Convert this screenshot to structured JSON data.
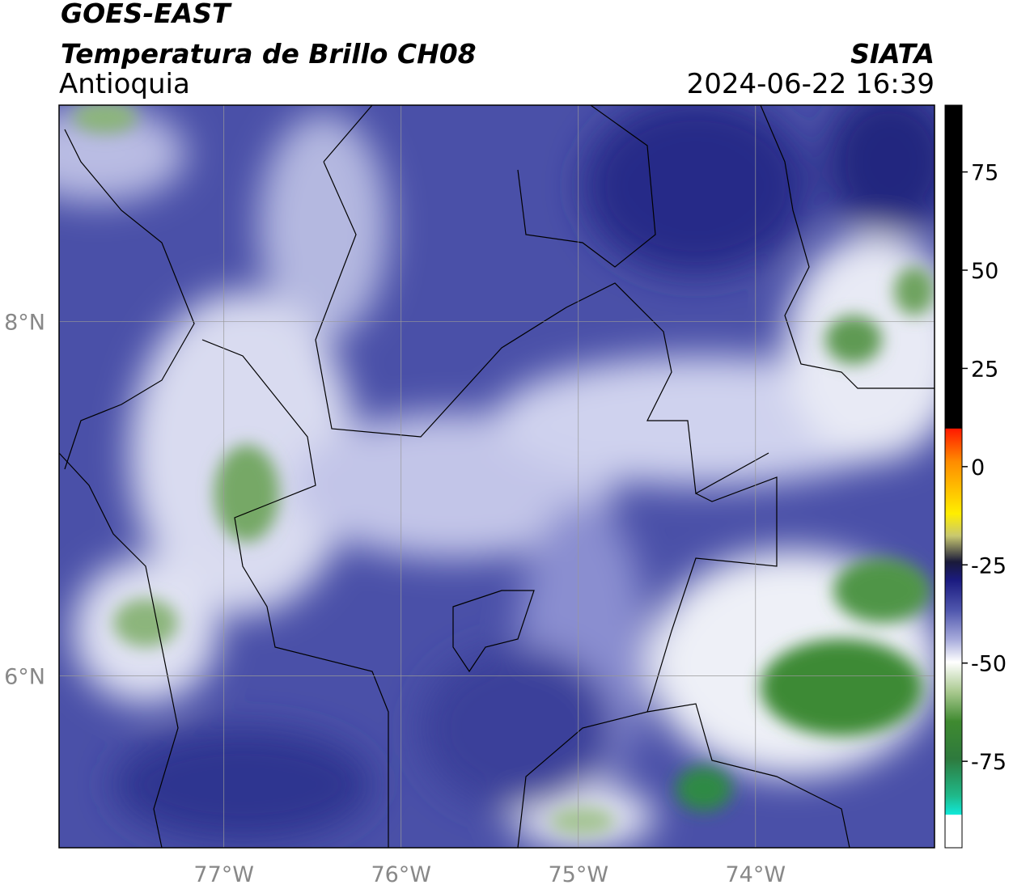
{
  "header": {
    "title": "GOES-EAST",
    "subtitle": "Temperatura de Brillo CH08",
    "region": "Antioquia",
    "source": "SIATA",
    "timestamp": "2024-06-22 16:39"
  },
  "map": {
    "lonlim": [
      -77.93,
      -72.99
    ],
    "latlim": [
      5.03,
      9.22
    ],
    "lon_ticks": [
      {
        "value": -77,
        "label": "77°W"
      },
      {
        "value": -76,
        "label": "76°W"
      },
      {
        "value": -75,
        "label": "75°W"
      },
      {
        "value": -74,
        "label": "74°W"
      }
    ],
    "lat_ticks": [
      {
        "value": 8,
        "label": "8°N"
      },
      {
        "value": 6,
        "label": "6°N"
      }
    ]
  },
  "colorbar": {
    "range": [
      -97,
      92
    ],
    "ticks": [
      75,
      50,
      25,
      0,
      -25,
      -50,
      -75
    ]
  }
}
